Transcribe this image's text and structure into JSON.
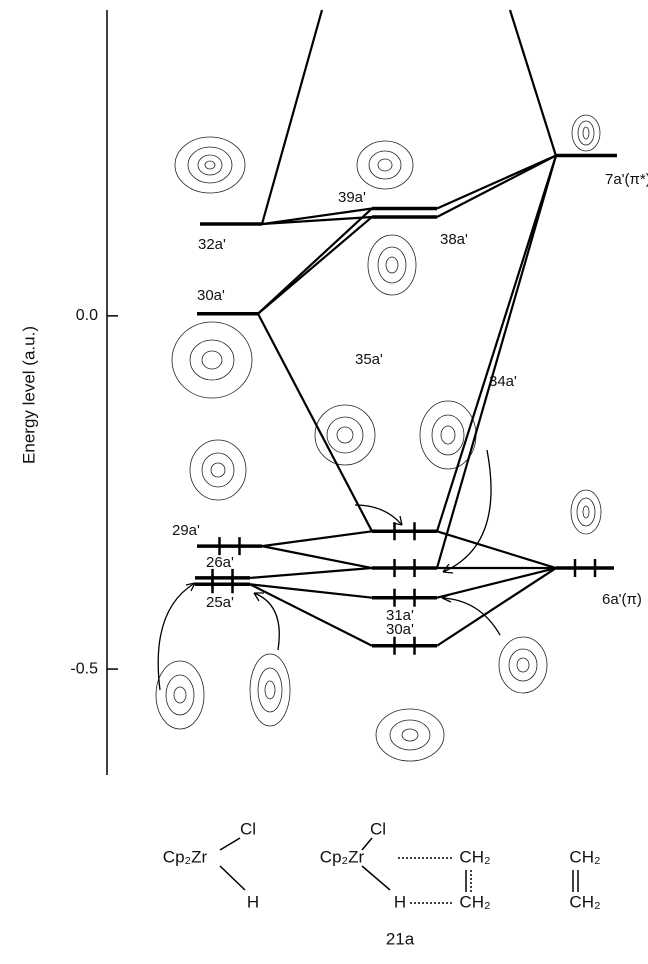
{
  "axis": {
    "label": "Energy level (a.u.)",
    "lim": [
      -0.65,
      0.433
    ],
    "ticks": [
      {
        "value": 0,
        "label": "0.0"
      },
      {
        "value": -0.5,
        "label": "-0.5"
      }
    ]
  },
  "levels": [
    {
      "label": "32a'",
      "energy": 0.13,
      "occupied": false
    },
    {
      "label": "30a'",
      "energy": 0.003,
      "occupied": false
    },
    {
      "label": "29a'",
      "energy": -0.326,
      "occupied": true
    },
    {
      "label": "26a'",
      "energy": -0.371,
      "occupied": true
    },
    {
      "label": "25a'",
      "energy": -0.38,
      "occupied": true
    },
    {
      "label": "39a'",
      "energy": 0.152,
      "occupied": false
    },
    {
      "label": "38a'",
      "energy": 0.14,
      "occupied": false
    },
    {
      "label": "35a'",
      "energy": -0.305,
      "occupied": true
    },
    {
      "label": "34a'",
      "energy": -0.357,
      "occupied": true
    },
    {
      "label": "31a'",
      "energy": -0.399,
      "occupied": true
    },
    {
      "label": "30a'",
      "energy": -0.467,
      "occupied": true
    },
    {
      "label": "7a'(π*)",
      "energy": 0.227,
      "occupied": false
    },
    {
      "label": "6a'(π)",
      "energy": -0.357,
      "occupied": true
    }
  ],
  "structures": {
    "left": {
      "cl": "Cl",
      "metal": "Cp₂Zr",
      "h": "H"
    },
    "middle": {
      "cl": "Cl",
      "metal": "Cp₂Zr",
      "ch2_top": "CH₂",
      "h": "H",
      "ch2_bottom": "CH₂",
      "label": "21a"
    },
    "right": {
      "ch2_top": "CH₂",
      "ch2_bottom": "CH₂"
    }
  }
}
